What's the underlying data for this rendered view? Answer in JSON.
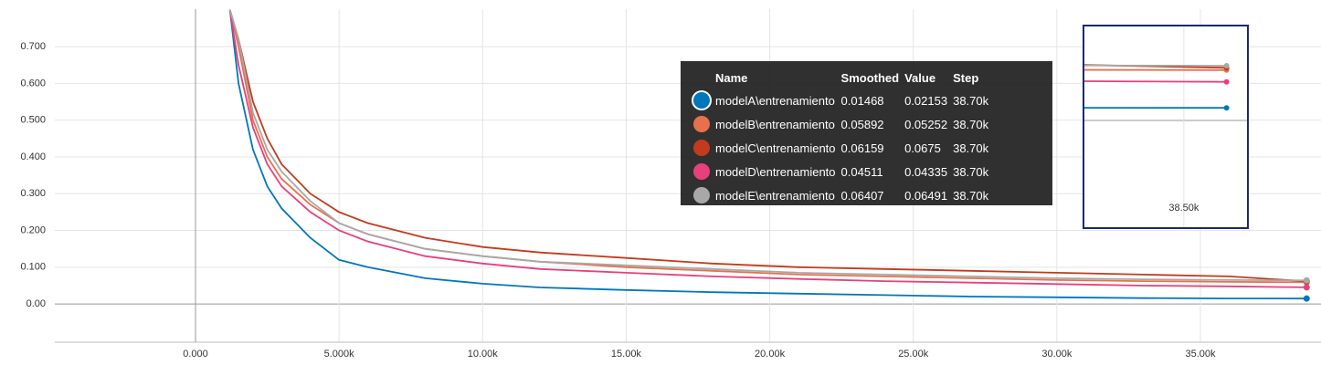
{
  "chart_data": {
    "type": "line",
    "x": [
      1200,
      1500,
      2000,
      2500,
      3000,
      4000,
      5000,
      6000,
      8000,
      10000,
      12000,
      15000,
      18000,
      21000,
      24000,
      27000,
      30000,
      33000,
      36000,
      38700
    ],
    "series": [
      {
        "name": "modelA\\entrenamiento",
        "color": "#0077bb",
        "values": [
          0.8,
          0.6,
          0.42,
          0.32,
          0.26,
          0.18,
          0.12,
          0.1,
          0.07,
          0.055,
          0.045,
          0.038,
          0.032,
          0.028,
          0.024,
          0.02,
          0.018,
          0.016,
          0.015,
          0.01468
        ]
      },
      {
        "name": "modelB\\entrenamiento",
        "color": "#e8704d",
        "values": [
          0.8,
          0.7,
          0.5,
          0.4,
          0.34,
          0.27,
          0.22,
          0.19,
          0.15,
          0.13,
          0.115,
          0.1,
          0.09,
          0.08,
          0.075,
          0.07,
          0.065,
          0.062,
          0.06,
          0.05892
        ]
      },
      {
        "name": "modelC\\entrenamiento",
        "color": "#c23b1c",
        "values": [
          0.8,
          0.72,
          0.55,
          0.45,
          0.38,
          0.3,
          0.25,
          0.22,
          0.18,
          0.155,
          0.14,
          0.125,
          0.11,
          0.1,
          0.095,
          0.09,
          0.085,
          0.08,
          0.075,
          0.06159
        ]
      },
      {
        "name": "modelD\\entrenamiento",
        "color": "#e7407c",
        "values": [
          0.8,
          0.65,
          0.48,
          0.38,
          0.32,
          0.25,
          0.2,
          0.17,
          0.13,
          0.11,
          0.095,
          0.085,
          0.075,
          0.068,
          0.062,
          0.058,
          0.054,
          0.05,
          0.048,
          0.04511
        ]
      },
      {
        "name": "modelE\\entrenamiento",
        "color": "#a8a8a8",
        "values": [
          0.8,
          0.72,
          0.52,
          0.42,
          0.36,
          0.28,
          0.22,
          0.19,
          0.15,
          0.13,
          0.115,
          0.105,
          0.095,
          0.085,
          0.08,
          0.075,
          0.07,
          0.067,
          0.065,
          0.06407
        ]
      }
    ],
    "xlim": [
      -4900,
      39200
    ],
    "ylim": [
      -0.104,
      0.802
    ],
    "xticks": [
      {
        "value": 0,
        "label": "0.000"
      },
      {
        "value": 5000,
        "label": "5.000k"
      },
      {
        "value": 10000,
        "label": "10.00k"
      },
      {
        "value": 15000,
        "label": "15.00k"
      },
      {
        "value": 20000,
        "label": "20.00k"
      },
      {
        "value": 25000,
        "label": "25.00k"
      },
      {
        "value": 30000,
        "label": "30.00k"
      },
      {
        "value": 35000,
        "label": "35.00k"
      }
    ],
    "yticks": [
      {
        "value": 0,
        "label": "0.00"
      },
      {
        "value": 0.1,
        "label": "0.100"
      },
      {
        "value": 0.2,
        "label": "0.200"
      },
      {
        "value": 0.3,
        "label": "0.300"
      },
      {
        "value": 0.4,
        "label": "0.400"
      },
      {
        "value": 0.5,
        "label": "0.500"
      },
      {
        "value": 0.6,
        "label": "0.600"
      },
      {
        "value": 0.7,
        "label": "0.700"
      }
    ],
    "grid": true,
    "tooltip": {
      "columns": [
        "Name",
        "Smoothed",
        "Value",
        "Step"
      ],
      "rows": [
        {
          "name": "modelA\\entrenamiento",
          "smoothed": 0.01468,
          "value": 0.02153,
          "step": "38.70k"
        },
        {
          "name": "modelB\\entrenamiento",
          "smoothed": 0.05892,
          "value": 0.05252,
          "step": "38.70k"
        },
        {
          "name": "modelC\\entrenamiento",
          "smoothed": 0.06159,
          "value": 0.0675,
          "step": "38.70k"
        },
        {
          "name": "modelD\\entrenamiento",
          "smoothed": 0.04511,
          "value": 0.04335,
          "step": "38.70k"
        },
        {
          "name": "modelE\\entrenamiento",
          "smoothed": 0.06407,
          "value": 0.06491,
          "step": "38.70k"
        }
      ]
    },
    "inset": {
      "xlim": [
        38030,
        38800
      ],
      "ylim": [
        -0.126,
        0.111
      ],
      "xticks": [
        {
          "value": 38500,
          "label": "38.50k"
        }
      ]
    }
  }
}
